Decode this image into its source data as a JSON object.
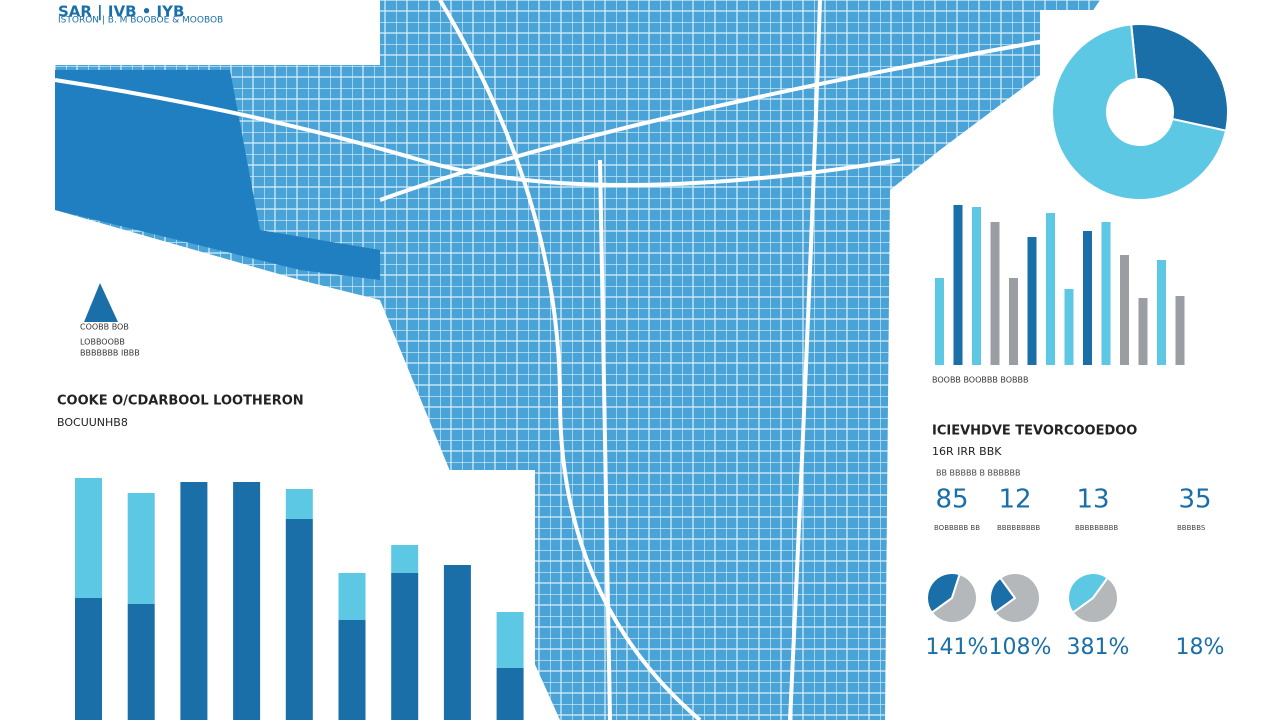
{
  "header": {
    "title": "SAR | IVB • IYB",
    "subtitle": "ISTORON | B. M BOOBOE & MOOBOB"
  },
  "logo": {
    "lines": [
      "COOBB BOB",
      "LOBBOOBB",
      "BBBBBBB IBBB"
    ]
  },
  "left_panel": {
    "title": "COOKE O/CDARBOOL LOOTHERON",
    "subtitle": "BOCUUNHB8",
    "chart": {
      "type": "bar",
      "ylim": [
        0,
        240
      ],
      "series": [
        {
          "color": "#1a6fa8",
          "values": [
            122,
            116,
            238,
            238,
            201,
            100,
            147,
            155,
            52
          ]
        },
        {
          "color": "#5cc8e4",
          "values": [
            120,
            111,
            0,
            0,
            30,
            47,
            28,
            0,
            56
          ]
        }
      ]
    }
  },
  "right_panel": {
    "donut": {
      "type": "pie",
      "values": [
        30,
        70
      ],
      "colors": [
        "#1a6fa8",
        "#5cc8e4"
      ]
    },
    "bars": {
      "type": "bar",
      "ylim": [
        0,
        170
      ],
      "values": [
        87,
        160,
        158,
        143,
        87,
        128,
        152,
        76,
        134,
        143,
        110,
        67,
        105,
        69
      ],
      "colors": [
        "#5cc8e4",
        "#1a6fa8",
        "#5cc8e4",
        "#9a9ea3",
        "#9a9ea3",
        "#1a6fa8",
        "#5cc8e4",
        "#5cc8e4",
        "#1a6fa8",
        "#5cc8e4",
        "#9a9ea3",
        "#9a9ea3",
        "#5cc8e4",
        "#9a9ea3"
      ]
    },
    "bars_caption": "BOOBB BOOBBB BOBBB",
    "title": "ICIEVHDVE TEVORCOOEDOO",
    "subtitle": "16R IRR BBK",
    "note": "BB BBBBB B BBBBBB",
    "stats": [
      {
        "value": "85",
        "label": "BOBBBBB BB",
        "pie": [
          40,
          60
        ],
        "percent": "141%"
      },
      {
        "value": "12",
        "label": "BBBBBBBBB",
        "pie": [
          25,
          75
        ],
        "percent": "108%"
      },
      {
        "value": "13",
        "label": "BBBBBBBBB",
        "pie": [
          45,
          55
        ],
        "percent": "381%"
      },
      {
        "value": "35",
        "label": "BBBBBS",
        "pie": null,
        "percent": "18%"
      }
    ]
  }
}
